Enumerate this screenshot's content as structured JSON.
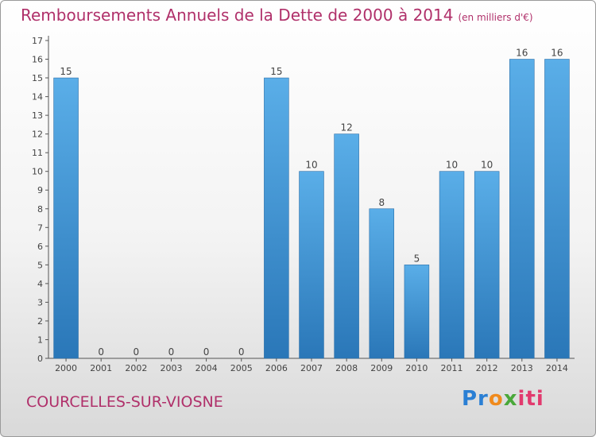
{
  "chart_data": {
    "type": "bar",
    "title": "Remboursements Annuels de la Dette de 2000 à 2014",
    "unit_note": "(en milliers d'€)",
    "categories": [
      "2000",
      "2001",
      "2002",
      "2003",
      "2004",
      "2005",
      "2006",
      "2007",
      "2008",
      "2009",
      "2010",
      "2011",
      "2012",
      "2013",
      "2014"
    ],
    "values": [
      15,
      0,
      0,
      0,
      0,
      0,
      15,
      10,
      12,
      8,
      5,
      10,
      10,
      16,
      16
    ],
    "ylim": [
      0,
      17
    ],
    "yticks": [
      0,
      1,
      2,
      3,
      4,
      5,
      6,
      7,
      8,
      9,
      10,
      11,
      12,
      13,
      14,
      15,
      16,
      17
    ],
    "grid": false,
    "bar_color": "#3d8fd6"
  },
  "footer": {
    "commune": "COURCELLES-SUR-VIOSNE",
    "logo": {
      "p1": "Pr",
      "p2": "o",
      "p3": "x",
      "p4": "iti"
    }
  }
}
